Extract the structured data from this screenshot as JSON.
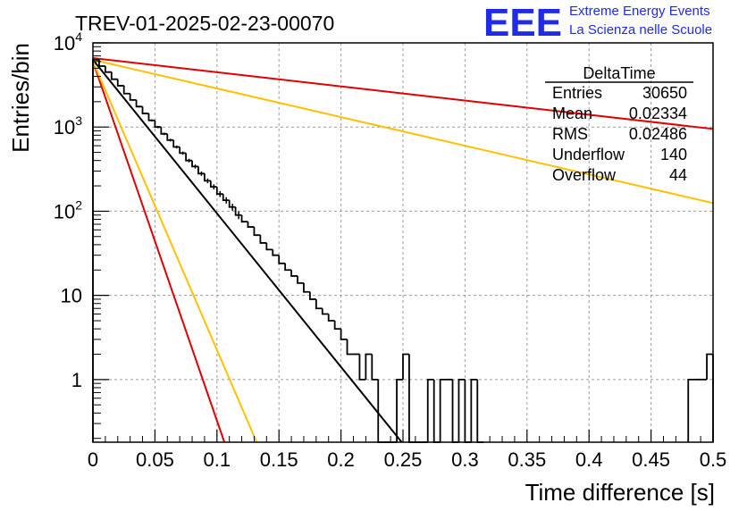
{
  "chart_data": {
    "type": "histogram",
    "title": "TREV-01-2025-02-23-00070",
    "xlabel": "Time difference [s]",
    "ylabel": "Entries/bin",
    "xlim": [
      0,
      0.5
    ],
    "ylim": [
      0.18,
      10000
    ],
    "yscale": "log",
    "grid": true,
    "x_ticks": [
      0,
      0.05,
      0.1,
      0.15,
      0.2,
      0.25,
      0.3,
      0.35,
      0.4,
      0.45,
      0.5
    ],
    "y_ticks": [
      {
        "value": 1,
        "label": "1"
      },
      {
        "value": 10,
        "label": "10"
      },
      {
        "value": 100,
        "label": "10",
        "exponent": "2"
      },
      {
        "value": 1000,
        "label": "10",
        "exponent": "3"
      },
      {
        "value": 10000,
        "label": "10",
        "exponent": "4"
      }
    ],
    "bin_width": 0.005,
    "histogram": {
      "name": "DeltaTime",
      "color": "#000000",
      "bins": [
        {
          "x": 0.0,
          "y": 6300
        },
        {
          "x": 0.005,
          "y": 5300
        },
        {
          "x": 0.01,
          "y": 4500
        },
        {
          "x": 0.015,
          "y": 3700
        },
        {
          "x": 0.02,
          "y": 3100
        },
        {
          "x": 0.025,
          "y": 2500
        },
        {
          "x": 0.03,
          "y": 2100
        },
        {
          "x": 0.035,
          "y": 1750
        },
        {
          "x": 0.04,
          "y": 1450
        },
        {
          "x": 0.045,
          "y": 1200
        },
        {
          "x": 0.05,
          "y": 1000
        },
        {
          "x": 0.055,
          "y": 830
        },
        {
          "x": 0.06,
          "y": 700
        },
        {
          "x": 0.065,
          "y": 580
        },
        {
          "x": 0.07,
          "y": 490
        },
        {
          "x": 0.075,
          "y": 400
        },
        {
          "x": 0.08,
          "y": 340
        },
        {
          "x": 0.085,
          "y": 280
        },
        {
          "x": 0.09,
          "y": 230
        },
        {
          "x": 0.095,
          "y": 195
        },
        {
          "x": 0.1,
          "y": 160
        },
        {
          "x": 0.105,
          "y": 135
        },
        {
          "x": 0.11,
          "y": 112
        },
        {
          "x": 0.115,
          "y": 90
        },
        {
          "x": 0.12,
          "y": 75
        },
        {
          "x": 0.125,
          "y": 65
        },
        {
          "x": 0.13,
          "y": 52
        },
        {
          "x": 0.135,
          "y": 42
        },
        {
          "x": 0.14,
          "y": 35
        },
        {
          "x": 0.145,
          "y": 30
        },
        {
          "x": 0.15,
          "y": 24
        },
        {
          "x": 0.155,
          "y": 20
        },
        {
          "x": 0.16,
          "y": 17
        },
        {
          "x": 0.165,
          "y": 14
        },
        {
          "x": 0.17,
          "y": 11
        },
        {
          "x": 0.175,
          "y": 9
        },
        {
          "x": 0.18,
          "y": 7
        },
        {
          "x": 0.185,
          "y": 6
        },
        {
          "x": 0.19,
          "y": 5
        },
        {
          "x": 0.195,
          "y": 4
        },
        {
          "x": 0.2,
          "y": 3
        },
        {
          "x": 0.205,
          "y": 2
        },
        {
          "x": 0.21,
          "y": 2
        },
        {
          "x": 0.215,
          "y": 1
        },
        {
          "x": 0.22,
          "y": 2
        },
        {
          "x": 0.225,
          "y": 1
        },
        {
          "x": 0.23,
          "y": 0
        },
        {
          "x": 0.235,
          "y": 0
        },
        {
          "x": 0.24,
          "y": 0
        },
        {
          "x": 0.245,
          "y": 1
        },
        {
          "x": 0.25,
          "y": 2
        },
        {
          "x": 0.255,
          "y": 0
        },
        {
          "x": 0.26,
          "y": 0
        },
        {
          "x": 0.265,
          "y": 0
        },
        {
          "x": 0.27,
          "y": 1
        },
        {
          "x": 0.275,
          "y": 0
        },
        {
          "x": 0.28,
          "y": 1
        },
        {
          "x": 0.285,
          "y": 1
        },
        {
          "x": 0.29,
          "y": 0
        },
        {
          "x": 0.295,
          "y": 1
        },
        {
          "x": 0.3,
          "y": 0
        },
        {
          "x": 0.305,
          "y": 1
        },
        {
          "x": 0.31,
          "y": 0
        },
        {
          "x": 0.48,
          "y": 1
        },
        {
          "x": 0.485,
          "y": 1
        },
        {
          "x": 0.49,
          "y": 1
        },
        {
          "x": 0.495,
          "y": 2
        }
      ]
    },
    "fit_lines": [
      {
        "color": "#000000",
        "x": [
          0.0,
          0.249
        ],
        "y": [
          6300,
          0.18
        ]
      },
      {
        "color": "#e00000",
        "x": [
          0.0,
          0.5
        ],
        "y": [
          6600,
          950
        ]
      },
      {
        "color": "#ffc000",
        "x": [
          0.0,
          0.5
        ],
        "y": [
          6300,
          125
        ]
      },
      {
        "color": "#e00000",
        "x": [
          0.0,
          0.106
        ],
        "y": [
          6000,
          0.18
        ]
      },
      {
        "color": "#ffc000",
        "x": [
          0.0,
          0.132
        ],
        "y": [
          6000,
          0.18
        ]
      }
    ],
    "stats_box": {
      "title": "DeltaTime",
      "rows": [
        {
          "label": "Entries",
          "value": "30650"
        },
        {
          "label": "Mean",
          "value": "0.02334"
        },
        {
          "label": "RMS",
          "value": "0.02486"
        },
        {
          "label": "Underflow",
          "value": "140"
        },
        {
          "label": "Overflow",
          "value": "44"
        }
      ]
    }
  },
  "logo": {
    "mark": "EEE",
    "line1": "Extreme Energy Events",
    "line2": "La Scienza nelle Scuole"
  }
}
